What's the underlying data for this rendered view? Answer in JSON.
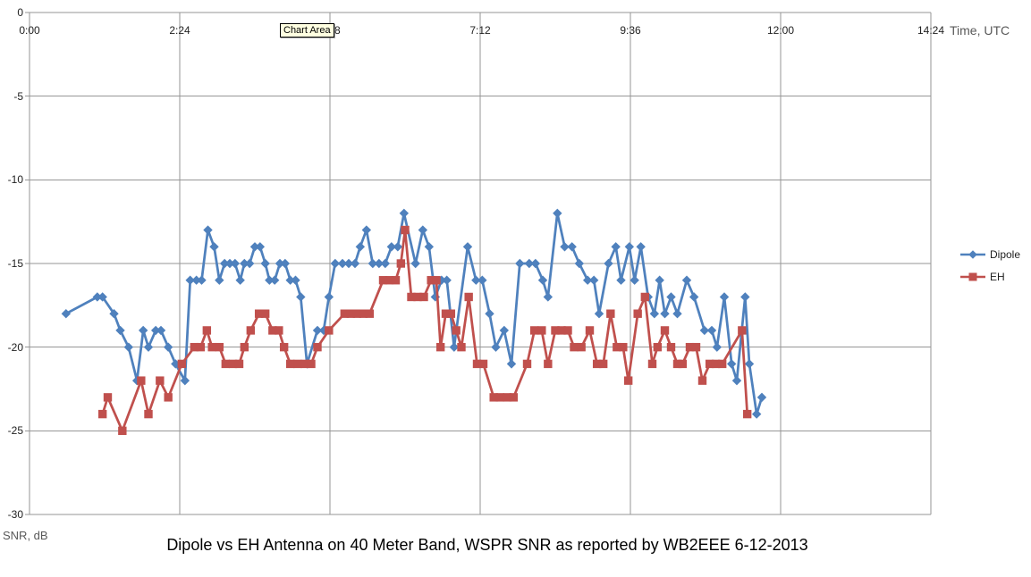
{
  "tooltip": {
    "label": "Chart Area"
  },
  "chart_data": {
    "type": "line",
    "title": "Dipole vs EH Antenna on 40 Meter Band, WSPR SNR as reported by WB2EEE 6-12-2013",
    "xlabel": "Time, UTC",
    "ylabel": "SNR, dB",
    "x_ticks": [
      "0:00",
      "2:24",
      "4:48",
      "7:12",
      "9:36",
      "12:00",
      "14:24"
    ],
    "x_tick_minutes": [
      0,
      144,
      288,
      432,
      576,
      720,
      864
    ],
    "x_range_minutes": [
      0,
      864
    ],
    "y_ticks": [
      0,
      -5,
      -10,
      -15,
      -20,
      -25,
      -30
    ],
    "ylim": [
      -30,
      0
    ],
    "grid": true,
    "grid_color": "#969696",
    "axis_color": "#969696",
    "legend_position": "right",
    "series": [
      {
        "name": "Dipole",
        "color": "#4F81BD",
        "marker": "diamond",
        "points": [
          [
            35,
            -18
          ],
          [
            65,
            -17
          ],
          [
            70,
            -17
          ],
          [
            81,
            -18
          ],
          [
            87,
            -19
          ],
          [
            95,
            -20
          ],
          [
            103,
            -22
          ],
          [
            109,
            -19
          ],
          [
            114,
            -20
          ],
          [
            121,
            -19
          ],
          [
            126,
            -19
          ],
          [
            133,
            -20
          ],
          [
            140,
            -21
          ],
          [
            149,
            -22
          ],
          [
            154,
            -16
          ],
          [
            160,
            -16
          ],
          [
            165,
            -16
          ],
          [
            171,
            -13
          ],
          [
            177,
            -14
          ],
          [
            182,
            -16
          ],
          [
            187,
            -15
          ],
          [
            192,
            -15
          ],
          [
            197,
            -15
          ],
          [
            202,
            -16
          ],
          [
            206,
            -15
          ],
          [
            211,
            -15
          ],
          [
            216,
            -14
          ],
          [
            221,
            -14
          ],
          [
            226,
            -15
          ],
          [
            230,
            -16
          ],
          [
            235,
            -16
          ],
          [
            240,
            -15
          ],
          [
            245,
            -15
          ],
          [
            250,
            -16
          ],
          [
            255,
            -16
          ],
          [
            260,
            -17
          ],
          [
            266,
            -21
          ],
          [
            276,
            -19
          ],
          [
            282,
            -19
          ],
          [
            287,
            -17
          ],
          [
            293,
            -15
          ],
          [
            300,
            -15
          ],
          [
            306,
            -15
          ],
          [
            312,
            -15
          ],
          [
            317,
            -14
          ],
          [
            323,
            -13
          ],
          [
            329,
            -15
          ],
          [
            335,
            -15
          ],
          [
            341,
            -15
          ],
          [
            347,
            -14
          ],
          [
            353,
            -14
          ],
          [
            359,
            -12
          ],
          [
            370,
            -15
          ],
          [
            377,
            -13
          ],
          [
            383,
            -14
          ],
          [
            389,
            -17
          ],
          [
            395,
            -16
          ],
          [
            400,
            -16
          ],
          [
            407,
            -20
          ],
          [
            420,
            -14
          ],
          [
            428,
            -16
          ],
          [
            434,
            -16
          ],
          [
            441,
            -18
          ],
          [
            447,
            -20
          ],
          [
            455,
            -19
          ],
          [
            462,
            -21
          ],
          [
            470,
            -15
          ],
          [
            479,
            -15
          ],
          [
            485,
            -15
          ],
          [
            492,
            -16
          ],
          [
            497,
            -17
          ],
          [
            506,
            -12
          ],
          [
            513,
            -14
          ],
          [
            520,
            -14
          ],
          [
            527,
            -15
          ],
          [
            535,
            -16
          ],
          [
            541,
            -16
          ],
          [
            546,
            -18
          ],
          [
            555,
            -15
          ],
          [
            562,
            -14
          ],
          [
            567,
            -16
          ],
          [
            575,
            -14
          ],
          [
            580,
            -16
          ],
          [
            586,
            -14
          ],
          [
            593,
            -17
          ],
          [
            599,
            -18
          ],
          [
            604,
            -16
          ],
          [
            609,
            -18
          ],
          [
            615,
            -17
          ],
          [
            621,
            -18
          ],
          [
            630,
            -16
          ],
          [
            637,
            -17
          ],
          [
            647,
            -19
          ],
          [
            654,
            -19
          ],
          [
            659,
            -20
          ],
          [
            666,
            -17
          ],
          [
            673,
            -21
          ],
          [
            678,
            -22
          ],
          [
            686,
            -17
          ],
          [
            690,
            -21
          ],
          [
            697,
            -24
          ],
          [
            702,
            -23
          ]
        ]
      },
      {
        "name": "EH",
        "color": "#C0504D",
        "marker": "square",
        "points": [
          [
            70,
            -24
          ],
          [
            75,
            -23
          ],
          [
            89,
            -25
          ],
          [
            107,
            -22
          ],
          [
            114,
            -24
          ],
          [
            125,
            -22
          ],
          [
            133,
            -23
          ],
          [
            146,
            -21
          ],
          [
            158,
            -20
          ],
          [
            164,
            -20
          ],
          [
            170,
            -19
          ],
          [
            175,
            -20
          ],
          [
            182,
            -20
          ],
          [
            188,
            -21
          ],
          [
            195,
            -21
          ],
          [
            201,
            -21
          ],
          [
            206,
            -20
          ],
          [
            212,
            -19
          ],
          [
            220,
            -18
          ],
          [
            226,
            -18
          ],
          [
            233,
            -19
          ],
          [
            239,
            -19
          ],
          [
            244,
            -20
          ],
          [
            250,
            -21
          ],
          [
            257,
            -21
          ],
          [
            264,
            -21
          ],
          [
            270,
            -21
          ],
          [
            276,
            -20
          ],
          [
            287,
            -19
          ],
          [
            302,
            -18
          ],
          [
            308,
            -18
          ],
          [
            314,
            -18
          ],
          [
            320,
            -18
          ],
          [
            326,
            -18
          ],
          [
            339,
            -16
          ],
          [
            345,
            -16
          ],
          [
            351,
            -16
          ],
          [
            356,
            -15
          ],
          [
            360,
            -13
          ],
          [
            366,
            -17
          ],
          [
            372,
            -17
          ],
          [
            378,
            -17
          ],
          [
            385,
            -16
          ],
          [
            390,
            -16
          ],
          [
            394,
            -20
          ],
          [
            399,
            -18
          ],
          [
            404,
            -18
          ],
          [
            409,
            -19
          ],
          [
            414,
            -20
          ],
          [
            421,
            -17
          ],
          [
            429,
            -21
          ],
          [
            435,
            -21
          ],
          [
            445,
            -23
          ],
          [
            451,
            -23
          ],
          [
            458,
            -23
          ],
          [
            464,
            -23
          ],
          [
            477,
            -21
          ],
          [
            484,
            -19
          ],
          [
            491,
            -19
          ],
          [
            497,
            -21
          ],
          [
            504,
            -19
          ],
          [
            510,
            -19
          ],
          [
            516,
            -19
          ],
          [
            522,
            -20
          ],
          [
            529,
            -20
          ],
          [
            537,
            -19
          ],
          [
            544,
            -21
          ],
          [
            550,
            -21
          ],
          [
            557,
            -18
          ],
          [
            563,
            -20
          ],
          [
            569,
            -20
          ],
          [
            574,
            -22
          ],
          [
            583,
            -18
          ],
          [
            590,
            -17
          ],
          [
            597,
            -21
          ],
          [
            602,
            -20
          ],
          [
            609,
            -19
          ],
          [
            615,
            -20
          ],
          [
            621,
            -21
          ],
          [
            626,
            -21
          ],
          [
            633,
            -20
          ],
          [
            639,
            -20
          ],
          [
            645,
            -22
          ],
          [
            652,
            -21
          ],
          [
            658,
            -21
          ],
          [
            664,
            -21
          ],
          [
            683,
            -19
          ],
          [
            688,
            -24
          ]
        ]
      }
    ]
  }
}
